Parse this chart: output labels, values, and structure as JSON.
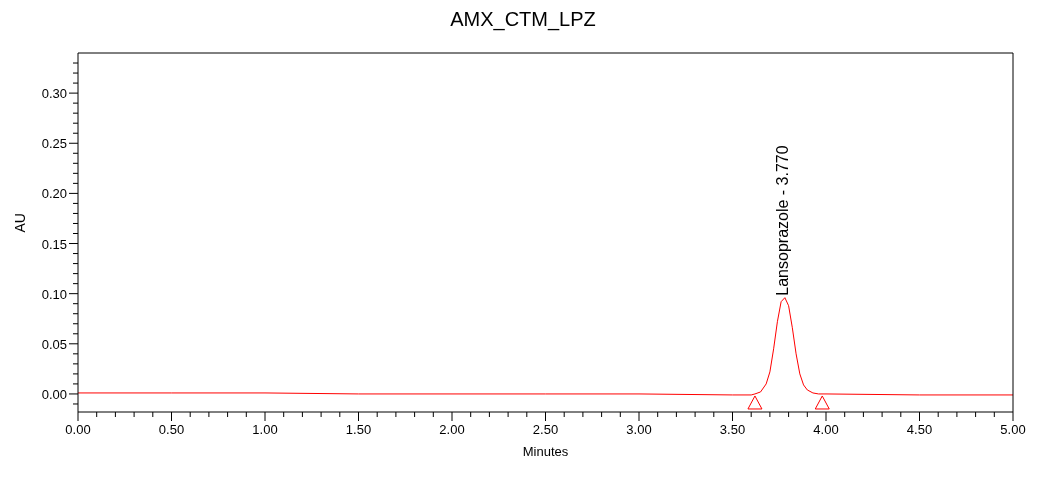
{
  "chart_data": {
    "type": "line",
    "title": "AMX_CTM_LPZ",
    "xlabel": "Minutes",
    "ylabel": "AU",
    "x": [
      0,
      0.5,
      1,
      1.5,
      2,
      2.5,
      3,
      3.5,
      3.6,
      3.62,
      3.65,
      3.68,
      3.7,
      3.72,
      3.74,
      3.76,
      3.78,
      3.8,
      3.82,
      3.84,
      3.86,
      3.88,
      3.9,
      3.93,
      3.96,
      4,
      4.5,
      5
    ],
    "series": [
      {
        "color": "#ff0000",
        "values": [
          0.001,
          0.001,
          0.001,
          0,
          0,
          0,
          0,
          -0.001,
          -0.001,
          0,
          0.002,
          0.01,
          0.022,
          0.045,
          0.072,
          0.092,
          0.096,
          0.088,
          0.066,
          0.04,
          0.02,
          0.009,
          0.004,
          0.001,
          0,
          0,
          -0.001,
          -0.001
        ]
      },
      {
        "type": "scatter",
        "marker": "triangle",
        "color": "#ff0000",
        "x": [
          3.62,
          3.98
        ],
        "values": [
          -0.009,
          -0.009
        ]
      }
    ],
    "annotations": [
      {
        "text": "Lansoprazole - 3.770",
        "x": 3.77,
        "y": 0.096
      }
    ],
    "xlim": [
      0,
      5
    ],
    "ylim": [
      -0.018,
      0.34
    ],
    "xticks": [
      {
        "value": 0,
        "label": "0.00"
      },
      {
        "value": 0.1,
        "label": null
      },
      {
        "value": 0.2,
        "label": null
      },
      {
        "value": 0.3,
        "label": null
      },
      {
        "value": 0.4,
        "label": null
      },
      {
        "value": 0.5,
        "label": "0.50"
      },
      {
        "value": 0.6,
        "label": null
      },
      {
        "value": 0.7,
        "label": null
      },
      {
        "value": 0.8,
        "label": null
      },
      {
        "value": 0.9,
        "label": null
      },
      {
        "value": 1,
        "label": "1.00"
      },
      {
        "value": 1.1,
        "label": null
      },
      {
        "value": 1.2,
        "label": null
      },
      {
        "value": 1.3,
        "label": null
      },
      {
        "value": 1.4,
        "label": null
      },
      {
        "value": 1.5,
        "label": "1.50"
      },
      {
        "value": 1.6,
        "label": null
      },
      {
        "value": 1.7,
        "label": null
      },
      {
        "value": 1.8,
        "label": null
      },
      {
        "value": 1.9,
        "label": null
      },
      {
        "value": 2,
        "label": "2.00"
      },
      {
        "value": 2.1,
        "label": null
      },
      {
        "value": 2.2,
        "label": null
      },
      {
        "value": 2.3,
        "label": null
      },
      {
        "value": 2.4,
        "label": null
      },
      {
        "value": 2.5,
        "label": "2.50"
      },
      {
        "value": 2.6,
        "label": null
      },
      {
        "value": 2.7,
        "label": null
      },
      {
        "value": 2.8,
        "label": null
      },
      {
        "value": 2.9,
        "label": null
      },
      {
        "value": 3,
        "label": "3.00"
      },
      {
        "value": 3.1,
        "label": null
      },
      {
        "value": 3.2,
        "label": null
      },
      {
        "value": 3.3,
        "label": null
      },
      {
        "value": 3.4,
        "label": null
      },
      {
        "value": 3.5,
        "label": "3.50"
      },
      {
        "value": 3.6,
        "label": null
      },
      {
        "value": 3.7,
        "label": null
      },
      {
        "value": 3.8,
        "label": null
      },
      {
        "value": 3.9,
        "label": null
      },
      {
        "value": 4,
        "label": "4.00"
      },
      {
        "value": 4.1,
        "label": null
      },
      {
        "value": 4.2,
        "label": null
      },
      {
        "value": 4.3,
        "label": null
      },
      {
        "value": 4.4,
        "label": null
      },
      {
        "value": 4.5,
        "label": "4.50"
      },
      {
        "value": 4.6,
        "label": null
      },
      {
        "value": 4.7,
        "label": null
      },
      {
        "value": 4.8,
        "label": null
      },
      {
        "value": 4.9,
        "label": null
      },
      {
        "value": 5,
        "label": "5.00"
      }
    ],
    "yticks": [
      {
        "value": -0.01,
        "label": null
      },
      {
        "value": 0,
        "label": "0.00"
      },
      {
        "value": 0.01,
        "label": null
      },
      {
        "value": 0.02,
        "label": null
      },
      {
        "value": 0.03,
        "label": null
      },
      {
        "value": 0.04,
        "label": null
      },
      {
        "value": 0.05,
        "label": "0.05"
      },
      {
        "value": 0.06,
        "label": null
      },
      {
        "value": 0.07,
        "label": null
      },
      {
        "value": 0.08,
        "label": null
      },
      {
        "value": 0.09,
        "label": null
      },
      {
        "value": 0.1,
        "label": "0.10"
      },
      {
        "value": 0.11,
        "label": null
      },
      {
        "value": 0.12,
        "label": null
      },
      {
        "value": 0.13,
        "label": null
      },
      {
        "value": 0.14,
        "label": null
      },
      {
        "value": 0.15,
        "label": "0.15"
      },
      {
        "value": 0.16,
        "label": null
      },
      {
        "value": 0.17,
        "label": null
      },
      {
        "value": 0.18,
        "label": null
      },
      {
        "value": 0.19,
        "label": null
      },
      {
        "value": 0.2,
        "label": "0.20"
      },
      {
        "value": 0.21,
        "label": null
      },
      {
        "value": 0.22,
        "label": null
      },
      {
        "value": 0.23,
        "label": null
      },
      {
        "value": 0.24,
        "label": null
      },
      {
        "value": 0.25,
        "label": "0.25"
      },
      {
        "value": 0.26,
        "label": null
      },
      {
        "value": 0.27,
        "label": null
      },
      {
        "value": 0.28,
        "label": null
      },
      {
        "value": 0.29,
        "label": null
      },
      {
        "value": 0.3,
        "label": "0.30"
      },
      {
        "value": 0.31,
        "label": null
      },
      {
        "value": 0.32,
        "label": null
      },
      {
        "value": 0.33,
        "label": null
      }
    ],
    "grid": false,
    "legend": false
  }
}
